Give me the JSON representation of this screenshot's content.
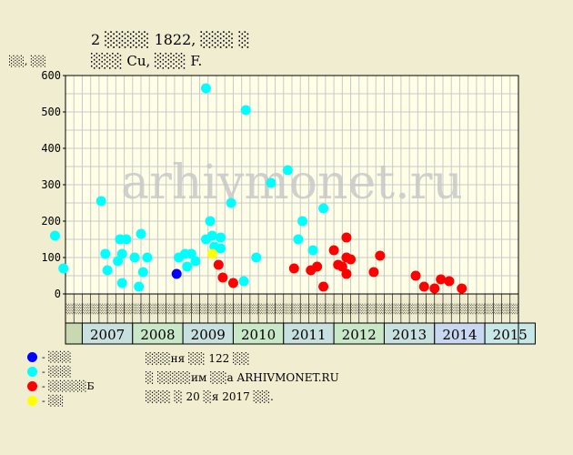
{
  "chart_data": {
    "type": "scatter",
    "title": "2 ░░░░ 1822, ░░░ ░",
    "subtitle": "░░░ Cu, ░░░ F.",
    "ylabel": "░░, ░░",
    "ylim": [
      0,
      600
    ],
    "yticks": [
      0,
      100,
      200,
      300,
      400,
      500,
      600
    ],
    "years": [
      "2007",
      "2008",
      "2009",
      "2010",
      "2011",
      "2012",
      "2013",
      "2014",
      "2015"
    ],
    "month_labels": [
      "░░",
      "░░",
      "░░",
      "░░",
      "░░",
      "░░",
      "░░",
      "░░",
      "░░",
      "░░",
      "░░",
      "░░",
      "░░",
      "░░",
      "░░",
      "░░",
      "░░",
      "░░",
      "░░",
      "░░",
      "░░",
      "░░",
      "░░",
      "░░",
      "░░",
      "░░",
      "░░",
      "░░",
      "░░",
      "░░",
      "░░",
      "░░",
      "░░",
      "░░",
      "░░",
      "░░",
      "░░",
      "░░",
      "░░",
      "░░",
      "░░",
      "░░",
      "░░",
      "░░",
      "░░",
      "░░",
      "░░",
      "░░",
      "░░",
      "░░",
      "░░",
      "░░",
      "░░",
      "░░"
    ],
    "x_unit": "month index since Jan 2007 (twoщmonth columns)",
    "watermark": "arhivmonet.ru",
    "colors": {
      "blue": "#0000ff",
      "cyan": "#00ffff",
      "red": "#ff0000",
      "yellow": "#ffff00",
      "year_even": "#c8e8c8",
      "year_odd": "#c8e0e0",
      "year_blue": "#c8d8f0"
    },
    "series": [
      {
        "name": "░ - ░░░",
        "color": "#0000ff",
        "points": [
          [
            22.5,
            55
          ]
        ]
      },
      {
        "name": "░ - ░░░",
        "color": "#00ffff",
        "points": [
          [
            -6.5,
            160
          ],
          [
            -4.5,
            70
          ],
          [
            4.5,
            255
          ],
          [
            5.5,
            110
          ],
          [
            6.0,
            65
          ],
          [
            8.5,
            90
          ],
          [
            9.0,
            150
          ],
          [
            9.5,
            110
          ],
          [
            9.5,
            30
          ],
          [
            10.5,
            150
          ],
          [
            12.5,
            100
          ],
          [
            13.5,
            20
          ],
          [
            14.0,
            165
          ],
          [
            14.5,
            60
          ],
          [
            15.5,
            100
          ],
          [
            23.0,
            100
          ],
          [
            24.5,
            110
          ],
          [
            25.0,
            75
          ],
          [
            26.0,
            110
          ],
          [
            27.0,
            90
          ],
          [
            29.5,
            565
          ],
          [
            29.5,
            150
          ],
          [
            30.5,
            200
          ],
          [
            31.0,
            160
          ],
          [
            31.5,
            130
          ],
          [
            33.0,
            125
          ],
          [
            33.0,
            155
          ],
          [
            35.5,
            250
          ],
          [
            38.5,
            35
          ],
          [
            39.0,
            505
          ],
          [
            41.5,
            100
          ],
          [
            45.0,
            305
          ],
          [
            49.0,
            340
          ],
          [
            51.5,
            150
          ],
          [
            52.5,
            200
          ],
          [
            55.0,
            120
          ],
          [
            57.5,
            235
          ]
        ]
      },
      {
        "name": "░ - ░░░░░Б",
        "color": "#ff0000",
        "points": [
          [
            32.5,
            80
          ],
          [
            33.5,
            45
          ],
          [
            36.0,
            30
          ],
          [
            50.5,
            70
          ],
          [
            54.5,
            65
          ],
          [
            56.0,
            75
          ],
          [
            57.5,
            20
          ],
          [
            60.0,
            120
          ],
          [
            61.0,
            80
          ],
          [
            62.0,
            75
          ],
          [
            63.0,
            155
          ],
          [
            63.0,
            100
          ],
          [
            63.0,
            55
          ],
          [
            64.0,
            95
          ],
          [
            69.5,
            60
          ],
          [
            71.0,
            105
          ],
          [
            79.5,
            50
          ],
          [
            81.5,
            20
          ],
          [
            84.0,
            15
          ],
          [
            85.5,
            40
          ],
          [
            87.5,
            35
          ],
          [
            90.5,
            15
          ]
        ]
      },
      {
        "name": "░ - ░░",
        "color": "#ffff00",
        "points": [
          [
            31.0,
            110
          ]
        ]
      }
    ],
    "legend": [
      {
        "label": "- ░░░",
        "color": "#0000ff"
      },
      {
        "label": "- ░░░",
        "color": "#00ffff"
      },
      {
        "label": "- ░░░░░Б",
        "color": "#ff0000"
      },
      {
        "label": "- ░░",
        "color": "#ffff00"
      }
    ],
    "notes": [
      "░░░ня ░░ 122 ░░",
      "░ ░░░░им ░░а ARHIVMONET.RU",
      "░░░ ░ 20 ░я 2017 ░░."
    ]
  }
}
